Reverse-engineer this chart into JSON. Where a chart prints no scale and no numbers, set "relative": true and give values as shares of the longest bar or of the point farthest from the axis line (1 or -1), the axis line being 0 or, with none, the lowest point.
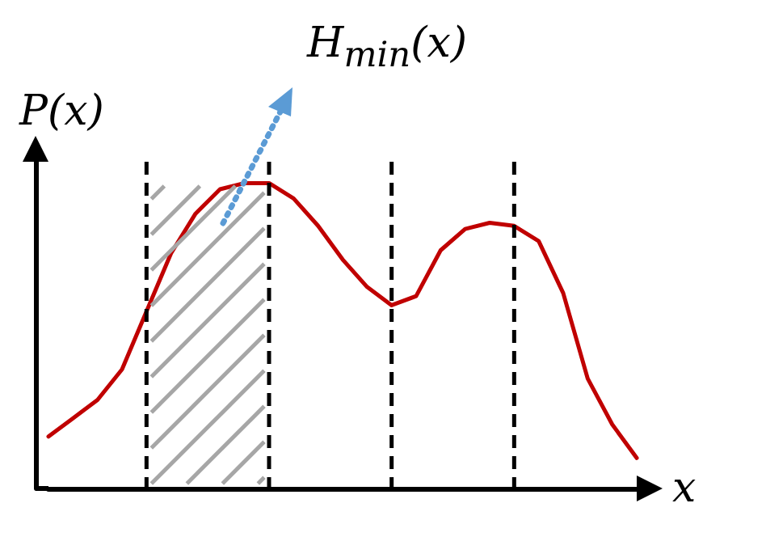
{
  "chart_data": {
    "type": "line",
    "relative": true,
    "xlabel": "x",
    "ylabel": "P(x)",
    "categories": [
      null,
      null,
      null,
      null,
      null,
      null,
      null,
      null,
      null,
      null,
      null,
      null,
      null,
      null,
      null,
      null,
      null,
      null,
      null,
      null,
      null,
      null,
      null,
      null,
      null
    ],
    "series": [
      {
        "color": "#c00000",
        "values": [
          0.17,
          0.23,
          0.29,
          0.39,
          0.58,
          0.77,
          0.9,
          0.98,
          1,
          1,
          0.95,
          0.86,
          0.75,
          0.66,
          0.6,
          0.63,
          0.78,
          0.85,
          0.87,
          0.86,
          0.81,
          0.64,
          0.36,
          0.21,
          0.1
        ]
      }
    ],
    "grid": "x",
    "marker": "none",
    "line_style": "solid",
    "annotations": [
      "H$_{min}$(x)"
    ]
  }
}
